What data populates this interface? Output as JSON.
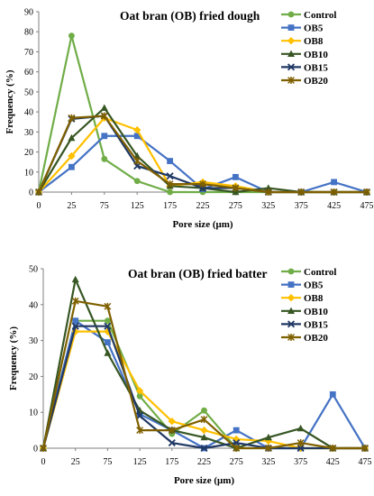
{
  "chart_data": [
    {
      "type": "line",
      "title": "Oat bran (OB) fried dough",
      "xlabel": "Pore size (μm)",
      "ylabel": "Frequency (%)",
      "x": [
        0,
        25,
        75,
        125,
        175,
        225,
        275,
        325,
        375,
        425,
        475
      ],
      "ylim": [
        0,
        90
      ],
      "yticks": [
        0,
        10,
        20,
        30,
        40,
        50,
        60,
        70,
        80,
        90
      ],
      "legend_position": "top-right",
      "grid": false,
      "series": [
        {
          "name": "Control",
          "color": "#70ad47",
          "marker": "circle",
          "values": [
            0,
            78,
            16.5,
            5.5,
            0,
            0,
            0,
            0,
            0,
            0,
            0
          ]
        },
        {
          "name": "OB5",
          "color": "#4472c4",
          "marker": "square",
          "values": [
            0,
            12.5,
            28,
            28,
            15.5,
            1.5,
            7.5,
            0,
            0,
            5,
            0
          ]
        },
        {
          "name": "OB8",
          "color": "#ffc000",
          "marker": "diamond",
          "values": [
            0,
            18,
            37,
            31,
            3,
            5,
            3,
            0,
            0,
            0,
            0
          ]
        },
        {
          "name": "OB10",
          "color": "#375623",
          "marker": "triangle",
          "values": [
            0,
            27,
            42,
            18,
            3,
            2,
            0,
            2,
            0,
            0,
            0
          ]
        },
        {
          "name": "OB15",
          "color": "#203864",
          "marker": "x",
          "values": [
            0,
            36.5,
            38,
            13,
            8,
            2,
            2,
            0,
            0,
            0,
            0
          ]
        },
        {
          "name": "OB20",
          "color": "#7f6000",
          "marker": "star",
          "values": [
            0,
            37,
            38,
            15.5,
            4,
            4,
            2,
            0,
            0,
            0,
            0
          ]
        }
      ]
    },
    {
      "type": "line",
      "title": "Oat bran (OB) fried batter",
      "xlabel": "Pore size (μm)",
      "ylabel": "Frequency (%)",
      "x": [
        0,
        25,
        75,
        125,
        175,
        225,
        275,
        325,
        375,
        425,
        475
      ],
      "ylim": [
        0,
        50
      ],
      "yticks": [
        0,
        10,
        20,
        30,
        40,
        50
      ],
      "legend_position": "top-right",
      "grid": false,
      "series": [
        {
          "name": "Control",
          "color": "#70ad47",
          "marker": "circle",
          "values": [
            0,
            35.5,
            35.5,
            14.5,
            4,
            10.5,
            0,
            0,
            0,
            0,
            0
          ]
        },
        {
          "name": "OB5",
          "color": "#4472c4",
          "marker": "square",
          "values": [
            0,
            35.5,
            29.5,
            9.5,
            5,
            0,
            5,
            0,
            0,
            15,
            0
          ]
        },
        {
          "name": "OB8",
          "color": "#ffc000",
          "marker": "diamond",
          "values": [
            0,
            32.5,
            32.5,
            16,
            7.5,
            5,
            2.5,
            2,
            0,
            0,
            0
          ]
        },
        {
          "name": "OB10",
          "color": "#375623",
          "marker": "triangle",
          "values": [
            0,
            47,
            26.5,
            10.5,
            5,
            3,
            0,
            3,
            5.5,
            0,
            0
          ]
        },
        {
          "name": "OB15",
          "color": "#203864",
          "marker": "x",
          "values": [
            0,
            34,
            34,
            9,
            1.5,
            0,
            1.5,
            0,
            0,
            0,
            0
          ]
        },
        {
          "name": "OB20",
          "color": "#7f6000",
          "marker": "star",
          "values": [
            0,
            41,
            39.5,
            5,
            5,
            8,
            0,
            0,
            1.5,
            0,
            0
          ]
        }
      ]
    }
  ]
}
